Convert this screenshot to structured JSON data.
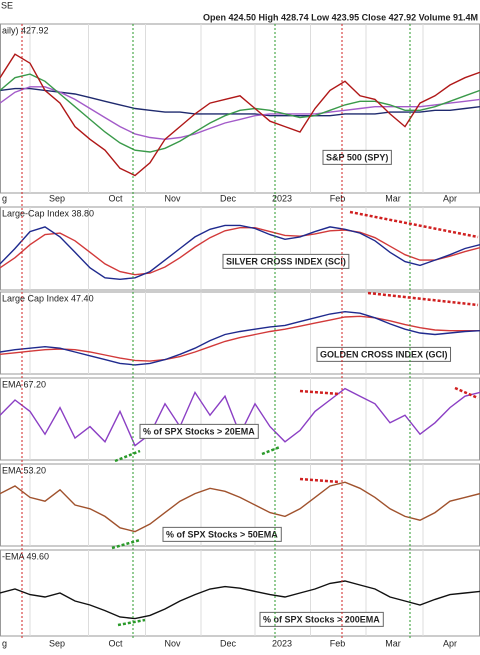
{
  "ticker": "SE",
  "quote": "Open 424.50  High 428.74  Low 423.95  Close 427.92  Volume 91.4M",
  "chart_data": [
    {
      "type": "line",
      "label": "aily) 427.92",
      "annotation": "S&P 500 (SPY)",
      "ylim": [
        350,
        440
      ],
      "xlim": [
        0,
        32
      ],
      "grid": true,
      "xticks": [
        {
          "value": 0.3,
          "label": "g"
        },
        {
          "value": 3.8,
          "label": "Sep"
        },
        {
          "value": 7.7,
          "label": "Oct"
        },
        {
          "value": 11.5,
          "label": "Nov"
        },
        {
          "value": 15.2,
          "label": "Dec"
        },
        {
          "value": 18.8,
          "label": "2023"
        },
        {
          "value": 22.5,
          "label": "Feb"
        },
        {
          "value": 26.2,
          "label": "Mar"
        },
        {
          "value": 30,
          "label": "Apr"
        }
      ],
      "series": [
        {
          "color": "#1f2a6e",
          "values": [
            405,
            406,
            406,
            405,
            404,
            403,
            401,
            399,
            397,
            395,
            394,
            393,
            393,
            392,
            392,
            392,
            392,
            392,
            391,
            391,
            391,
            391,
            391,
            392,
            392,
            392,
            393,
            393,
            393,
            394,
            394,
            395,
            396
          ]
        },
        {
          "color": "#a35bc9",
          "values": [
            398,
            404,
            407,
            407,
            404,
            400,
            395,
            390,
            385,
            381,
            379,
            378,
            379,
            381,
            384,
            387,
            389,
            391,
            392,
            392,
            392,
            392,
            393,
            394,
            395,
            396,
            396,
            396,
            396,
            397,
            398,
            399,
            400
          ]
        },
        {
          "color": "#3a9a4a",
          "values": [
            405,
            412,
            414,
            410,
            403,
            396,
            389,
            382,
            376,
            372,
            371,
            373,
            377,
            382,
            387,
            391,
            394,
            395,
            394,
            392,
            390,
            391,
            394,
            397,
            399,
            399,
            397,
            394,
            394,
            396,
            399,
            402,
            405
          ]
        },
        {
          "color": "#b01818",
          "values": [
            412,
            425,
            420,
            405,
            398,
            385,
            378,
            372,
            362,
            358,
            365,
            378,
            385,
            392,
            398,
            400,
            402,
            395,
            388,
            385,
            382,
            395,
            405,
            410,
            402,
            400,
            392,
            385,
            398,
            402,
            408,
            412,
            415
          ]
        }
      ]
    },
    {
      "type": "line",
      "label": "Large-Cap Index 38.80",
      "annotation": "SILVER CROSS INDEX (SCI)",
      "ylim": [
        0,
        100
      ],
      "xlim": [
        0,
        32
      ],
      "grid": true,
      "series": [
        {
          "color": "#d23a3a",
          "values": [
            25,
            38,
            55,
            68,
            70,
            60,
            45,
            30,
            20,
            16,
            18,
            26,
            38,
            52,
            64,
            73,
            77,
            77,
            72,
            67,
            66,
            69,
            73,
            74,
            71,
            64,
            53,
            42,
            35,
            35,
            40,
            46,
            51
          ]
        },
        {
          "color": "#1f2a8e",
          "values": [
            30,
            50,
            72,
            78,
            65,
            45,
            25,
            12,
            10,
            12,
            20,
            35,
            50,
            65,
            75,
            80,
            80,
            76,
            68,
            62,
            65,
            72,
            78,
            75,
            70,
            60,
            45,
            33,
            28,
            35,
            42,
            50,
            55
          ]
        }
      ]
    },
    {
      "type": "line",
      "label": "Large Cap Index 47.40",
      "annotation": "GOLDEN CROSS INDEX (GCI)",
      "ylim": [
        0,
        100
      ],
      "xlim": [
        0,
        32
      ],
      "grid": true,
      "series": [
        {
          "color": "#d23a3a",
          "values": [
            22,
            24,
            26,
            28,
            29,
            28,
            25,
            21,
            17,
            14,
            13,
            15,
            19,
            25,
            32,
            39,
            44,
            48,
            52,
            55,
            59,
            63,
            67,
            71,
            72,
            70,
            66,
            61,
            57,
            54,
            53,
            53,
            53
          ]
        },
        {
          "color": "#1f2a8e",
          "values": [
            25,
            28,
            30,
            32,
            30,
            25,
            20,
            15,
            10,
            8,
            10,
            15,
            22,
            30,
            40,
            48,
            52,
            55,
            58,
            60,
            65,
            70,
            75,
            78,
            76,
            70,
            62,
            55,
            50,
            48,
            50,
            52,
            53
          ]
        }
      ]
    },
    {
      "type": "line",
      "label": "EMA 67.20",
      "annotation": "% of SPX Stocks > 20EMA",
      "ylim": [
        0,
        100
      ],
      "xlim": [
        0,
        32
      ],
      "grid": true,
      "series": [
        {
          "color": "#8b3fc4",
          "values": [
            55,
            75,
            60,
            30,
            65,
            25,
            40,
            20,
            60,
            15,
            30,
            70,
            40,
            85,
            55,
            80,
            30,
            70,
            40,
            20,
            35,
            60,
            75,
            90,
            80,
            70,
            45,
            55,
            30,
            45,
            65,
            80,
            85
          ]
        }
      ]
    },
    {
      "type": "line",
      "label": "EMA 53.20",
      "annotation": "% of SPX Stocks > 50EMA",
      "ylim": [
        0,
        100
      ],
      "xlim": [
        0,
        32
      ],
      "grid": true,
      "series": [
        {
          "color": "#a0522d",
          "values": [
            65,
            75,
            60,
            55,
            70,
            50,
            45,
            35,
            20,
            15,
            25,
            40,
            55,
            65,
            72,
            68,
            60,
            50,
            40,
            35,
            45,
            60,
            75,
            80,
            72,
            60,
            45,
            35,
            30,
            40,
            55,
            60,
            65
          ]
        }
      ]
    },
    {
      "type": "line",
      "label": "-EMA 49.60",
      "annotation": "% of SPX Stocks > 200EMA",
      "ylim": [
        0,
        100
      ],
      "xlim": [
        0,
        32
      ],
      "grid": true,
      "xticks": [
        {
          "value": 0.3,
          "label": "g"
        },
        {
          "value": 3.8,
          "label": "Sep"
        },
        {
          "value": 7.7,
          "label": "Oct"
        },
        {
          "value": 11.5,
          "label": "Nov"
        },
        {
          "value": 15.2,
          "label": "Dec"
        },
        {
          "value": 18.8,
          "label": "2023"
        },
        {
          "value": 22.5,
          "label": "Feb"
        },
        {
          "value": 26.2,
          "label": "Mar"
        },
        {
          "value": 30,
          "label": "Apr"
        }
      ],
      "series": [
        {
          "color": "#111111",
          "values": [
            50,
            55,
            48,
            45,
            50,
            40,
            35,
            28,
            20,
            18,
            22,
            30,
            40,
            48,
            55,
            58,
            56,
            52,
            48,
            45,
            50,
            55,
            62,
            65,
            60,
            55,
            45,
            40,
            35,
            42,
            48,
            50,
            52
          ]
        }
      ]
    }
  ]
}
